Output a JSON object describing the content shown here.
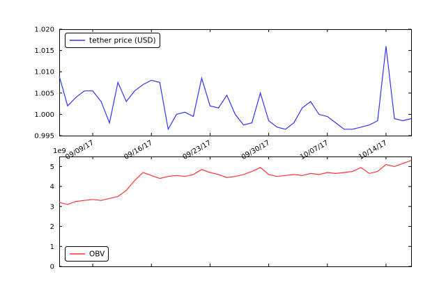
{
  "figure": {
    "background": "#ffffff",
    "axis_color": "#000000"
  },
  "chart_data": [
    {
      "type": "line",
      "name": "tether-price",
      "legend_label": "tether price (USD)",
      "legend_position": "upper left",
      "color": "#3333ff",
      "grid": false,
      "ylim": [
        0.995,
        1.02
      ],
      "ytick_labels": [
        "0.995",
        "1.000",
        "1.005",
        "1.010",
        "1.015",
        "1.020"
      ],
      "ytick_values": [
        0.995,
        1.0,
        1.005,
        1.01,
        1.015,
        1.02
      ],
      "xtick_labels": [
        "09/09/17",
        "09/16/17",
        "09/23/17",
        "09/30/17",
        "10/07/17",
        "10/14/17"
      ],
      "xtick_indices": [
        4,
        11,
        18,
        25,
        32,
        39
      ],
      "x_count": 43,
      "values": [
        1.009,
        1.002,
        1.004,
        1.0055,
        1.0055,
        1.003,
        0.998,
        1.0075,
        1.003,
        1.0055,
        1.007,
        1.008,
        1.0075,
        0.9965,
        1.0,
        1.0005,
        0.9995,
        1.0085,
        1.002,
        1.0015,
        1.0045,
        1.0,
        0.9975,
        0.998,
        1.005,
        0.9985,
        0.997,
        0.9965,
        0.998,
        1.0015,
        1.003,
        1.0,
        0.9995,
        0.998,
        0.9965,
        0.9965,
        0.997,
        0.9975,
        0.9985,
        1.016,
        0.999,
        0.9985,
        0.999
      ]
    },
    {
      "type": "line",
      "name": "obv",
      "legend_label": "OBV",
      "legend_position": "lower left",
      "color": "#ff3333",
      "grid": false,
      "offset_text": "1e9",
      "ylim": [
        0,
        5.5
      ],
      "ytick_labels": [
        "0",
        "1",
        "2",
        "3",
        "4",
        "5"
      ],
      "ytick_values": [
        0,
        1,
        2,
        3,
        4,
        5
      ],
      "xtick_indices": [
        4,
        11,
        18,
        25,
        32,
        39
      ],
      "x_count": 43,
      "values": [
        3.2,
        3.1,
        3.25,
        3.3,
        3.35,
        3.3,
        3.4,
        3.5,
        3.8,
        4.3,
        4.7,
        4.55,
        4.4,
        4.5,
        4.55,
        4.5,
        4.6,
        4.85,
        4.7,
        4.6,
        4.45,
        4.5,
        4.6,
        4.75,
        4.95,
        4.6,
        4.5,
        4.55,
        4.6,
        4.55,
        4.65,
        4.6,
        4.7,
        4.65,
        4.7,
        4.75,
        4.95,
        4.65,
        4.75,
        5.1,
        5.0,
        5.15,
        5.3
      ]
    }
  ]
}
